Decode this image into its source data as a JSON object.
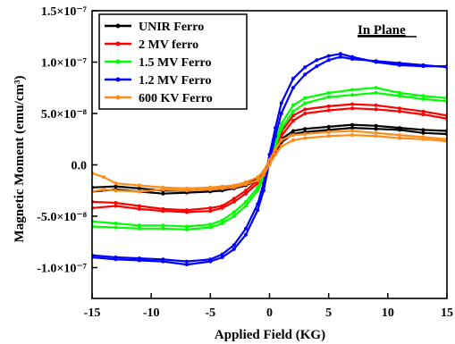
{
  "chart_data": {
    "type": "line",
    "xlabel": "Applied Field (KG)",
    "ylabel": "Magnetic Moment (emu/cm³)",
    "xlim": [
      -15,
      15
    ],
    "ylim": [
      -1.3e-07,
      1.5e-07
    ],
    "x_ticks": [
      {
        "value": -15,
        "label": "-15"
      },
      {
        "value": -10,
        "label": "-10"
      },
      {
        "value": -5,
        "label": "-5"
      },
      {
        "value": 0,
        "label": "0"
      },
      {
        "value": 5,
        "label": "5"
      },
      {
        "value": 10,
        "label": "10"
      },
      {
        "value": 15,
        "label": "15"
      }
    ],
    "y_ticks": [
      {
        "value": -1e-07,
        "label": "-1.0×10⁻⁷"
      },
      {
        "value": -5e-08,
        "label": "-5.0×10⁻⁸"
      },
      {
        "value": 0,
        "label": "0.0"
      },
      {
        "value": 5e-08,
        "label": "5.0×10⁻⁸"
      },
      {
        "value": 1e-07,
        "label": "1.0×10⁻⁷"
      },
      {
        "value": 1.5e-07,
        "label": "1.5×10⁻⁷"
      }
    ],
    "annotation": "In Plane",
    "legend_position": "top-left",
    "series": [
      {
        "name": "UNIR Ferro",
        "color": "#000000",
        "x": [
          -15,
          -13,
          -11,
          -9,
          -7,
          -5,
          -4,
          -3,
          -2,
          -1,
          -0.5,
          0,
          0.5,
          1,
          2,
          3,
          5,
          7,
          9,
          11,
          13,
          15
        ],
        "up": [
          -2.6e-08,
          -2.4e-08,
          -2.6e-08,
          -2.8e-08,
          -2.7e-08,
          -2.6e-08,
          -2.5e-08,
          -2.3e-08,
          -2e-08,
          -1.5e-08,
          -9e-09,
          2e-09,
          1.2e-08,
          2.2e-08,
          3e-08,
          3.2e-08,
          3.4e-08,
          3.6e-08,
          3.5e-08,
          3.4e-08,
          3.1e-08,
          3e-08
        ],
        "down": [
          -2.2e-08,
          -2.1e-08,
          -2.3e-08,
          -2.5e-08,
          -2.5e-08,
          -2.4e-08,
          -2.3e-08,
          -2.1e-08,
          -1.9e-08,
          -1.3e-08,
          -7e-09,
          4e-09,
          1.4e-08,
          2.5e-08,
          3.3e-08,
          3.5e-08,
          3.7e-08,
          3.9e-08,
          3.8e-08,
          3.6e-08,
          3.4e-08,
          3.3e-08
        ]
      },
      {
        "name": "2 MV ferro",
        "color": "#ff0000",
        "x": [
          -15,
          -13,
          -11,
          -9,
          -7,
          -5,
          -4,
          -3,
          -2,
          -1,
          -0.5,
          0,
          0.5,
          1,
          2,
          3,
          5,
          7,
          9,
          11,
          13,
          15
        ],
        "up": [
          -4.2e-08,
          -4e-08,
          -4.3e-08,
          -4.5e-08,
          -4.6e-08,
          -4.5e-08,
          -4.2e-08,
          -3.6e-08,
          -2.8e-08,
          -1.8e-08,
          -1e-08,
          2e-09,
          1.2e-08,
          2.8e-08,
          4.3e-08,
          5e-08,
          5.3e-08,
          5.5e-08,
          5.4e-08,
          5.2e-08,
          4.9e-08,
          4.5e-08
        ],
        "down": [
          -3.6e-08,
          -3.7e-08,
          -4e-08,
          -4.3e-08,
          -4.4e-08,
          -4.2e-08,
          -4e-08,
          -3.3e-08,
          -2.5e-08,
          -1.5e-08,
          -8e-09,
          5e-09,
          1.6e-08,
          3.2e-08,
          4.8e-08,
          5.4e-08,
          5.7e-08,
          5.9e-08,
          5.8e-08,
          5.5e-08,
          5.2e-08,
          4.8e-08
        ]
      },
      {
        "name": "1.5 MV Ferro",
        "color": "#00ff00",
        "x": [
          -15,
          -13,
          -11,
          -9,
          -7,
          -5,
          -4,
          -3,
          -2,
          -1,
          -0.5,
          0,
          0.5,
          1,
          2,
          3,
          5,
          7,
          9,
          11,
          13,
          15
        ],
        "up": [
          -6e-08,
          -6.1e-08,
          -6.2e-08,
          -6.2e-08,
          -6.3e-08,
          -6.1e-08,
          -5.7e-08,
          -5e-08,
          -4e-08,
          -2.5e-08,
          -1.3e-08,
          3e-09,
          1.8e-08,
          3.5e-08,
          5.2e-08,
          6e-08,
          6.6e-08,
          6.8e-08,
          7e-08,
          6.7e-08,
          6.4e-08,
          6.2e-08
        ],
        "down": [
          -5.5e-08,
          -5.7e-08,
          -5.9e-08,
          -5.9e-08,
          -6e-08,
          -5.8e-08,
          -5.4e-08,
          -4.6e-08,
          -3.6e-08,
          -2.2e-08,
          -1e-08,
          6e-09,
          2.2e-08,
          4e-08,
          5.8e-08,
          6.5e-08,
          7e-08,
          7.3e-08,
          7.5e-08,
          7e-08,
          6.7e-08,
          6.5e-08
        ]
      },
      {
        "name": "1.2 MV Ferro",
        "color": "#0000ff",
        "x": [
          -15,
          -13,
          -11,
          -9,
          -7,
          -5,
          -4,
          -3,
          -2,
          -1,
          -0.5,
          0,
          0.5,
          1,
          2,
          3,
          4,
          5,
          6,
          7,
          9,
          11,
          13,
          15
        ],
        "up": [
          -9e-08,
          -9.2e-08,
          -9.3e-08,
          -9.4e-08,
          -9.7e-08,
          -9.4e-08,
          -9e-08,
          -8.2e-08,
          -6.8e-08,
          -4.4e-08,
          -2.5e-08,
          3e-09,
          2.8e-08,
          5e-08,
          7.5e-08,
          8.8e-08,
          9.6e-08,
          1.02e-07,
          1.05e-07,
          1.03e-07,
          1.01e-07,
          9.9e-08,
          9.7e-08,
          9.5e-08
        ],
        "down": [
          -8.8e-08,
          -9e-08,
          -9.1e-08,
          -9.2e-08,
          -9.4e-08,
          -9.2e-08,
          -8.7e-08,
          -7.8e-08,
          -6.2e-08,
          -3.8e-08,
          -1.8e-08,
          1e-08,
          3.6e-08,
          6e-08,
          8.4e-08,
          9.5e-08,
          1.02e-07,
          1.06e-07,
          1.08e-07,
          1.05e-07,
          1e-07,
          9.7e-08,
          9.6e-08,
          9.6e-08
        ]
      },
      {
        "name": "600 KV Ferro",
        "color": "#ff8c1a",
        "x": [
          -15,
          -14,
          -13,
          -11,
          -9,
          -7,
          -5,
          -4,
          -3,
          -2,
          -1,
          -0.5,
          0,
          0.5,
          1,
          2,
          3,
          5,
          7,
          9,
          11,
          13,
          15
        ],
        "up": [
          -2.6e-08,
          -2.4e-08,
          -2.5e-08,
          -2.6e-08,
          -2.4e-08,
          -2.5e-08,
          -2.4e-08,
          -2.3e-08,
          -2.2e-08,
          -1.9e-08,
          -1.5e-08,
          -1e-08,
          0.0,
          1e-08,
          1.8e-08,
          2.4e-08,
          2.6e-08,
          2.8e-08,
          2.9e-08,
          2.8e-08,
          2.6e-08,
          2.5e-08,
          2.3e-08
        ],
        "down": [
          -8e-09,
          -1.2e-08,
          -1.8e-08,
          -2e-08,
          -2.2e-08,
          -2.3e-08,
          -2.2e-08,
          -2.1e-08,
          -2e-08,
          -1.7e-08,
          -1.2e-08,
          -6e-09,
          5e-09,
          1.5e-08,
          2.4e-08,
          2.9e-08,
          3e-08,
          3.2e-08,
          3.3e-08,
          3.1e-08,
          2.9e-08,
          2.7e-08,
          2.5e-08
        ]
      }
    ]
  }
}
